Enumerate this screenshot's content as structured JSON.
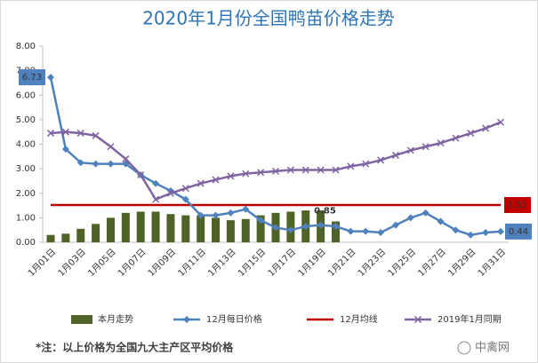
{
  "chart_data": {
    "type": "combo",
    "title": "2020年1月份全国鸭苗价格走势",
    "categories": [
      "1月01日",
      null,
      "1月03日",
      null,
      "1月05日",
      null,
      "1月07日",
      null,
      "1月09日",
      null,
      "1月11日",
      null,
      "1月13日",
      null,
      "1月15日",
      null,
      "1月17日",
      null,
      "1月19日",
      null,
      "1月21日",
      null,
      "1月23日",
      null,
      "1月25日",
      null,
      "1月27日",
      null,
      "1月29日",
      null,
      "1月31日"
    ],
    "ylim": [
      0,
      8
    ],
    "yticks": [
      {
        "value": 0,
        "label": "0.00"
      },
      {
        "value": 1,
        "label": "1.00"
      },
      {
        "value": 2,
        "label": "2.00"
      },
      {
        "value": 3,
        "label": "3.00"
      },
      {
        "value": 4,
        "label": "4.00"
      },
      {
        "value": 5,
        "label": "5.00"
      },
      {
        "value": 6,
        "label": "6.00"
      },
      {
        "value": 7,
        "label": "7.00"
      },
      {
        "value": 8,
        "label": "8.00"
      }
    ],
    "grid": false,
    "series": [
      {
        "name": "本月走势",
        "kind": "bar",
        "color": "#4f6228",
        "labels": "last",
        "values": [
          0.3,
          0.35,
          0.55,
          0.75,
          1.0,
          1.2,
          1.25,
          1.25,
          1.15,
          1.1,
          1.1,
          1.0,
          0.9,
          0.95,
          1.1,
          1.2,
          1.25,
          1.3,
          1.3,
          0.85,
          null,
          null,
          null,
          null,
          null,
          null,
          null,
          null,
          null,
          null,
          null
        ]
      },
      {
        "name": "12月每日价格",
        "kind": "line",
        "marker": "diamond",
        "color": "#4f81bd",
        "labels": "ends",
        "values": [
          6.73,
          3.8,
          3.25,
          3.2,
          3.2,
          3.2,
          2.75,
          2.4,
          2.1,
          1.75,
          1.1,
          1.1,
          1.2,
          1.35,
          0.9,
          0.6,
          0.5,
          0.65,
          0.7,
          0.65,
          0.45,
          0.45,
          0.4,
          0.7,
          1.0,
          1.2,
          0.85,
          0.5,
          0.3,
          0.4,
          0.44
        ]
      },
      {
        "name": "12月均线",
        "kind": "hline",
        "color": "#c00000",
        "labels": "end",
        "value": 1.52
      },
      {
        "name": "2019年1月同期",
        "kind": "line",
        "marker": "x",
        "color": "#8064a2",
        "values": [
          4.45,
          4.5,
          4.45,
          4.35,
          3.9,
          3.4,
          2.75,
          1.75,
          2.0,
          2.2,
          2.4,
          2.55,
          2.7,
          2.8,
          2.85,
          2.9,
          2.95,
          2.95,
          2.95,
          2.95,
          3.1,
          3.2,
          3.35,
          3.55,
          3.75,
          3.9,
          4.05,
          4.25,
          4.45,
          4.65,
          4.9
        ]
      }
    ]
  },
  "footnote": "*注：以上价格为全国九大主产区平均价格",
  "watermark": "中禽网"
}
